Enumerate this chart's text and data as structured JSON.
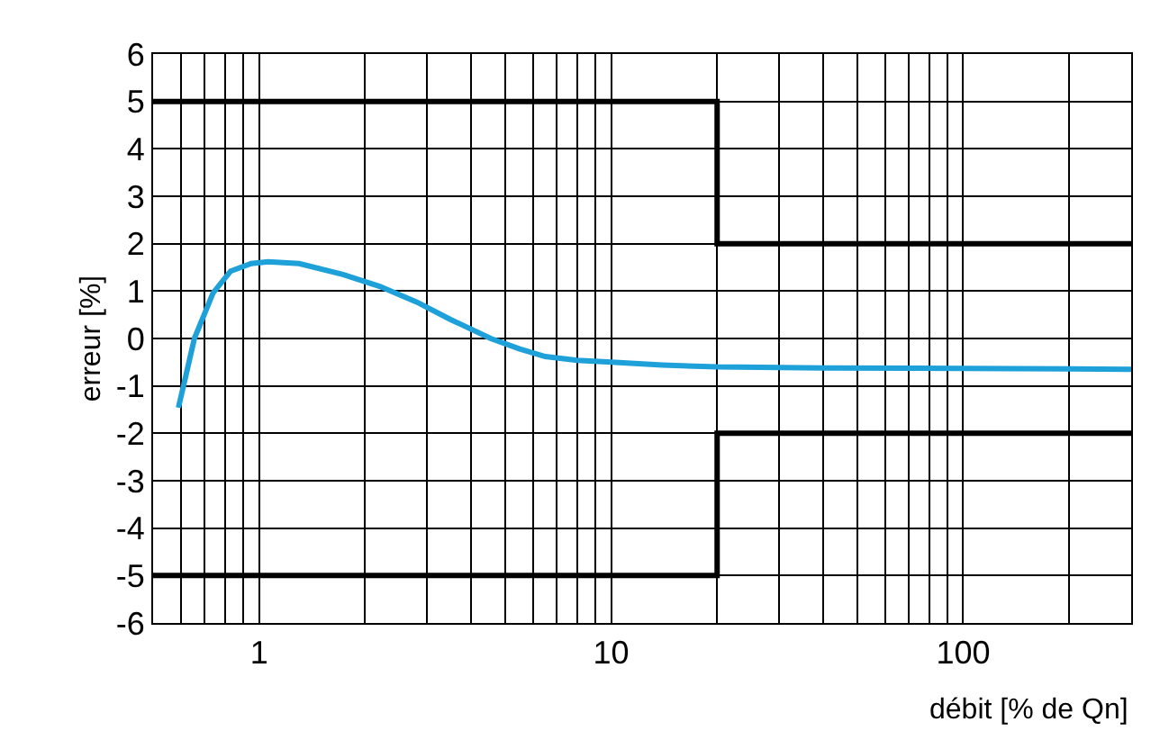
{
  "chart_data": {
    "type": "line",
    "xlabel": "débit [% de Qn]",
    "ylabel": "erreur [%]",
    "log": "x",
    "grid": true,
    "marker": "none",
    "line_style": "solid",
    "xlim": [
      0.5,
      300
    ],
    "ylim": [
      -6,
      6
    ],
    "xticks": [
      {
        "value": 0.5,
        "label": null
      },
      {
        "value": 0.6,
        "label": null
      },
      {
        "value": 0.7,
        "label": null
      },
      {
        "value": 0.8,
        "label": null
      },
      {
        "value": 0.9,
        "label": null
      },
      1,
      {
        "value": 2,
        "label": null
      },
      {
        "value": 3,
        "label": null
      },
      {
        "value": 4,
        "label": null
      },
      {
        "value": 5,
        "label": null
      },
      {
        "value": 6,
        "label": null
      },
      {
        "value": 7,
        "label": null
      },
      {
        "value": 8,
        "label": null
      },
      {
        "value": 9,
        "label": null
      },
      10,
      {
        "value": 20,
        "label": null
      },
      {
        "value": 30,
        "label": null
      },
      {
        "value": 40,
        "label": null
      },
      {
        "value": 50,
        "label": null
      },
      {
        "value": 60,
        "label": null
      },
      {
        "value": 70,
        "label": null
      },
      {
        "value": 80,
        "label": null
      },
      {
        "value": 90,
        "label": null
      },
      100,
      {
        "value": 200,
        "label": null
      },
      {
        "value": 300,
        "label": null
      }
    ],
    "yticks": [
      -6,
      -5,
      -4,
      -3,
      -2,
      -1,
      0,
      1,
      2,
      3,
      4,
      5,
      6
    ],
    "series": [
      {
        "color": "#000000",
        "x": [
          0.5,
          20,
          20,
          300
        ],
        "values": [
          5,
          5,
          2,
          2
        ]
      },
      {
        "color": "#000000",
        "x": [
          0.5,
          20,
          20,
          300
        ],
        "values": [
          -5,
          -5,
          -2,
          -2
        ]
      },
      {
        "color": "#1ea0d8",
        "x": [
          0.59,
          0.62,
          0.655,
          0.74,
          0.83,
          0.95,
          1.06,
          1.3,
          1.73,
          2.2,
          2.8,
          3.5,
          4.55,
          5.5,
          6.5,
          8,
          10,
          14,
          20,
          40,
          100,
          200,
          300
        ],
        "values": [
          -1.46,
          -0.77,
          0,
          0.96,
          1.42,
          1.58,
          1.62,
          1.58,
          1.35,
          1.1,
          0.77,
          0.4,
          0,
          -0.22,
          -0.38,
          -0.46,
          -0.5,
          -0.56,
          -0.6,
          -0.62,
          -0.63,
          -0.64,
          -0.65
        ]
      }
    ]
  }
}
